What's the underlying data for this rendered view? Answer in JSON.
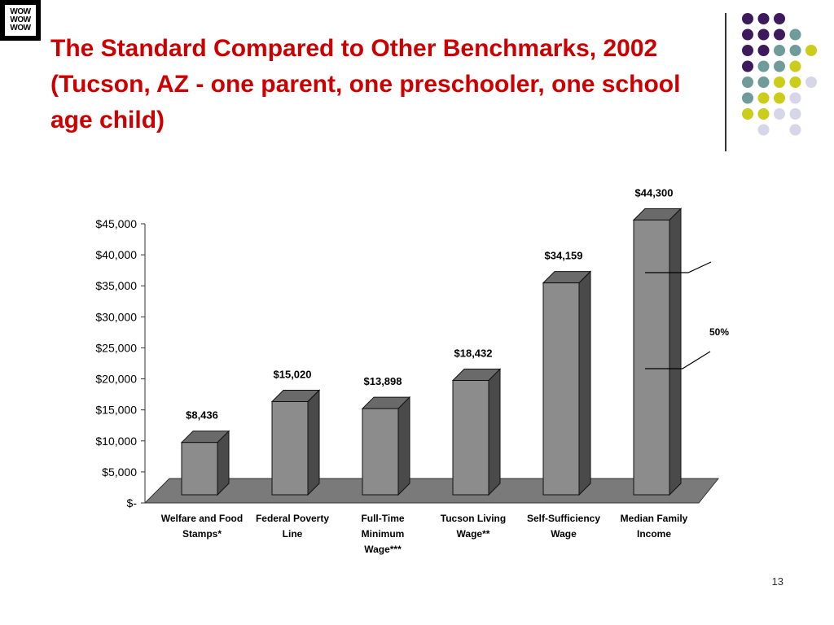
{
  "slide": {
    "logo_lines": [
      "WOW",
      "WOW",
      "WOW"
    ],
    "title": "The Standard Compared to Other Benchmarks, 2002 (Tucson, AZ - one parent, one preschooler, one school age child)",
    "page_number": "13",
    "title_color": "#cc0000",
    "dot_colors": {
      "purple": "#3d1a5b",
      "teal": "#6f9b9b",
      "yellow": "#cccc1a",
      "lavender": "#d6d6e8"
    }
  },
  "chart_data": {
    "type": "bar",
    "categories": [
      [
        "Welfare and Food",
        "Stamps*"
      ],
      [
        "Federal Poverty",
        "Line"
      ],
      [
        "Full-Time",
        "Minimum",
        "Wage***"
      ],
      [
        "Tucson Living",
        "Wage**"
      ],
      [
        "Self-Sufficiency",
        "Wage"
      ],
      [
        "Median Family",
        "Income"
      ]
    ],
    "values": [
      8436,
      15020,
      13898,
      18432,
      34159,
      44300
    ],
    "value_labels": [
      "$8,436",
      "$15,020",
      "$13,898",
      "$18,432",
      "$34,159",
      "$44,300"
    ],
    "y_ticks": [
      "$-",
      "$5,000",
      "$10,000",
      "$15,000",
      "$20,000",
      "$25,000",
      "$30,000",
      "$35,000",
      "$40,000",
      "$45,000"
    ],
    "ylim": [
      0,
      45000
    ],
    "annotation": "50%",
    "bar_color": "#8c8c8c",
    "bar_side_color": "#4a4a4a",
    "bar_top_color": "#6a6a6a",
    "floor_color": "#7a7a7a"
  }
}
